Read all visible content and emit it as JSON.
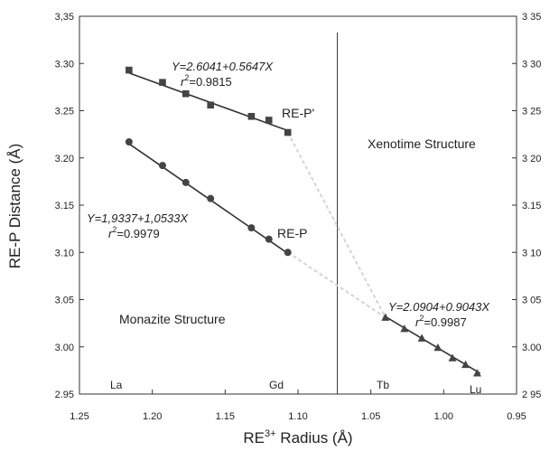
{
  "chart_data": {
    "type": "scatter",
    "xlabel": "RE³⁺ Radius (Å)",
    "ylabel": "RE-P Distance (Å)",
    "xlim": [
      1.25,
      0.95
    ],
    "ylim": [
      2.95,
      3.35
    ],
    "x_reversed": true,
    "grid": false,
    "x_ticks": [
      1.25,
      1.2,
      1.15,
      1.1,
      1.05,
      1.0,
      0.95
    ],
    "x_tick_labels": [
      "1.25",
      "1.20",
      "1.15",
      "1.10",
      "1.05",
      "1.00",
      "0.95"
    ],
    "y_ticks": [
      2.95,
      3.0,
      3.05,
      3.1,
      3.15,
      3.2,
      3.25,
      3.3,
      3.35
    ],
    "y_tick_labels_left": [
      "2.95",
      "3.00",
      "3.05",
      "3.10",
      "3.15",
      "3.20",
      "3.25",
      "3.30",
      "3,35"
    ],
    "y_tick_labels_right": [
      "2 95",
      "3.00",
      "3 05",
      "3 10",
      "3.15",
      "3 20",
      "3 25",
      "3 30",
      "3 35"
    ],
    "series": [
      {
        "name": "RE-P'",
        "marker": "square",
        "x": [
          1.216,
          1.193,
          1.177,
          1.16,
          1.132,
          1.12,
          1.107
        ],
        "y": [
          3.293,
          3.28,
          3.268,
          3.256,
          3.244,
          3.24,
          3.227
        ],
        "fit": {
          "x": [
            1.216,
            1.107
          ],
          "y": [
            3.29,
            3.229
          ]
        },
        "equation": "Y=2.6041+0.5647X",
        "r2": "=0.9815"
      },
      {
        "name": "RE-P",
        "marker": "circle",
        "x": [
          1.216,
          1.193,
          1.177,
          1.16,
          1.132,
          1.12,
          1.107
        ],
        "y": [
          3.217,
          3.192,
          3.174,
          3.157,
          3.126,
          3.114,
          3.1
        ],
        "fit": {
          "x": [
            1.216,
            1.107
          ],
          "y": [
            3.215,
            3.099
          ]
        },
        "equation": "Y=1,9337+1,0533X",
        "r2": "=0.9979"
      },
      {
        "name": "",
        "marker": "triangle",
        "x": [
          1.04,
          1.027,
          1.015,
          1.004,
          0.994,
          0.985,
          0.977
        ],
        "y": [
          3.031,
          3.019,
          3.009,
          2.999,
          2.988,
          2.981,
          2.972
        ],
        "fit": {
          "x": [
            1.04,
            0.975
          ],
          "y": [
            3.032,
            2.972
          ]
        },
        "equation": "Y=2.0904+0.9043X",
        "r2": "=0.9987"
      }
    ],
    "annotations": {
      "series_labels": [
        "RE-P'",
        "RE-P"
      ],
      "structures": [
        "Xenotime Structure",
        "Monazite Structure"
      ],
      "elements": [
        "La",
        "Gd",
        "Tb",
        "Lu"
      ],
      "r_symbol": "r",
      "r_exponent": "2"
    },
    "dashed_connectors": [
      {
        "x": [
          1.107,
          1.04
        ],
        "y": [
          3.227,
          3.031
        ]
      },
      {
        "x": [
          1.107,
          1.04
        ],
        "y": [
          3.1,
          3.031
        ]
      }
    ],
    "boundary_x": 1.073,
    "colors": {
      "line": "#333333",
      "connector": "#d4d4d4",
      "marker": "#444444"
    }
  }
}
